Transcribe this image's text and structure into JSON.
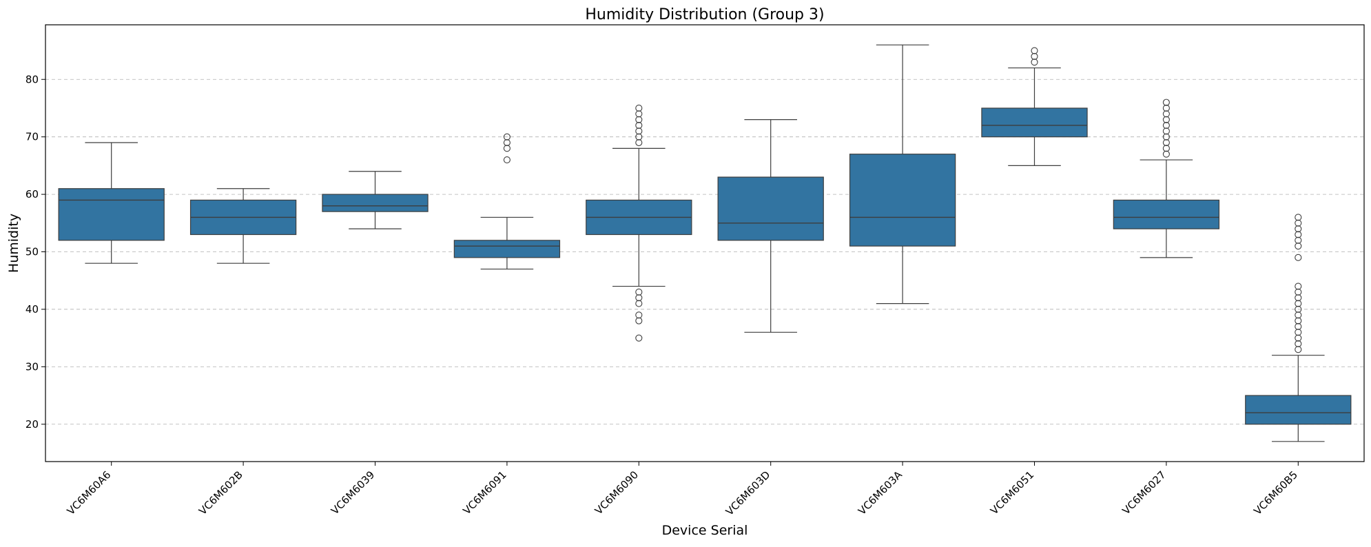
{
  "chart_data": {
    "type": "box",
    "title": "Humidity Distribution (Group 3)",
    "xlabel": "Device Serial",
    "ylabel": "Humidity",
    "ylim": [
      13.5,
      89.5
    ],
    "yticks": [
      20,
      30,
      40,
      50,
      60,
      70,
      80
    ],
    "grid": "y-dashed",
    "legend": "none",
    "box_color": "#3274a1",
    "edge_color": "#3d3d3d",
    "categories": [
      "VC6M60A6",
      "VC6M602B",
      "VC6M6039",
      "VC6M6091",
      "VC6M6090",
      "VC6M603D",
      "VC6M603A",
      "VC6M6051",
      "VC6M6027",
      "VC6M60B5"
    ],
    "boxes": [
      {
        "category": "VC6M60A6",
        "whisker_low": 48,
        "q1": 52,
        "median": 59,
        "q3": 61,
        "whisker_high": 69,
        "outliers": []
      },
      {
        "category": "VC6M602B",
        "whisker_low": 48,
        "q1": 53,
        "median": 56,
        "q3": 59,
        "whisker_high": 61,
        "outliers": []
      },
      {
        "category": "VC6M6039",
        "whisker_low": 54,
        "q1": 57,
        "median": 58,
        "q3": 60,
        "whisker_high": 64,
        "outliers": []
      },
      {
        "category": "VC6M6091",
        "whisker_low": 47,
        "q1": 49,
        "median": 51,
        "q3": 52,
        "whisker_high": 56,
        "outliers": [
          66,
          68,
          69,
          70
        ]
      },
      {
        "category": "VC6M6090",
        "whisker_low": 44,
        "q1": 53,
        "median": 56,
        "q3": 59,
        "whisker_high": 68,
        "outliers": [
          35,
          38,
          39,
          41,
          42,
          43,
          69,
          70,
          71,
          72,
          73,
          74,
          75
        ]
      },
      {
        "category": "VC6M603D",
        "whisker_low": 36,
        "q1": 52,
        "median": 55,
        "q3": 63,
        "whisker_high": 73,
        "outliers": []
      },
      {
        "category": "VC6M603A",
        "whisker_low": 41,
        "q1": 51,
        "median": 56,
        "q3": 67,
        "whisker_high": 86,
        "outliers": []
      },
      {
        "category": "VC6M6051",
        "whisker_low": 65,
        "q1": 70,
        "median": 72,
        "q3": 75,
        "whisker_high": 82,
        "outliers": [
          83,
          84,
          85
        ]
      },
      {
        "category": "VC6M6027",
        "whisker_low": 49,
        "q1": 54,
        "median": 56,
        "q3": 59,
        "whisker_high": 66,
        "outliers": [
          67,
          68,
          69,
          70,
          71,
          72,
          73,
          74,
          75,
          76
        ]
      },
      {
        "category": "VC6M60B5",
        "whisker_low": 17,
        "q1": 20,
        "median": 22,
        "q3": 25,
        "whisker_high": 32,
        "outliers": [
          33,
          34,
          35,
          36,
          37,
          38,
          39,
          40,
          41,
          42,
          43,
          44,
          49,
          51,
          52,
          53,
          54,
          55,
          56
        ]
      }
    ]
  }
}
